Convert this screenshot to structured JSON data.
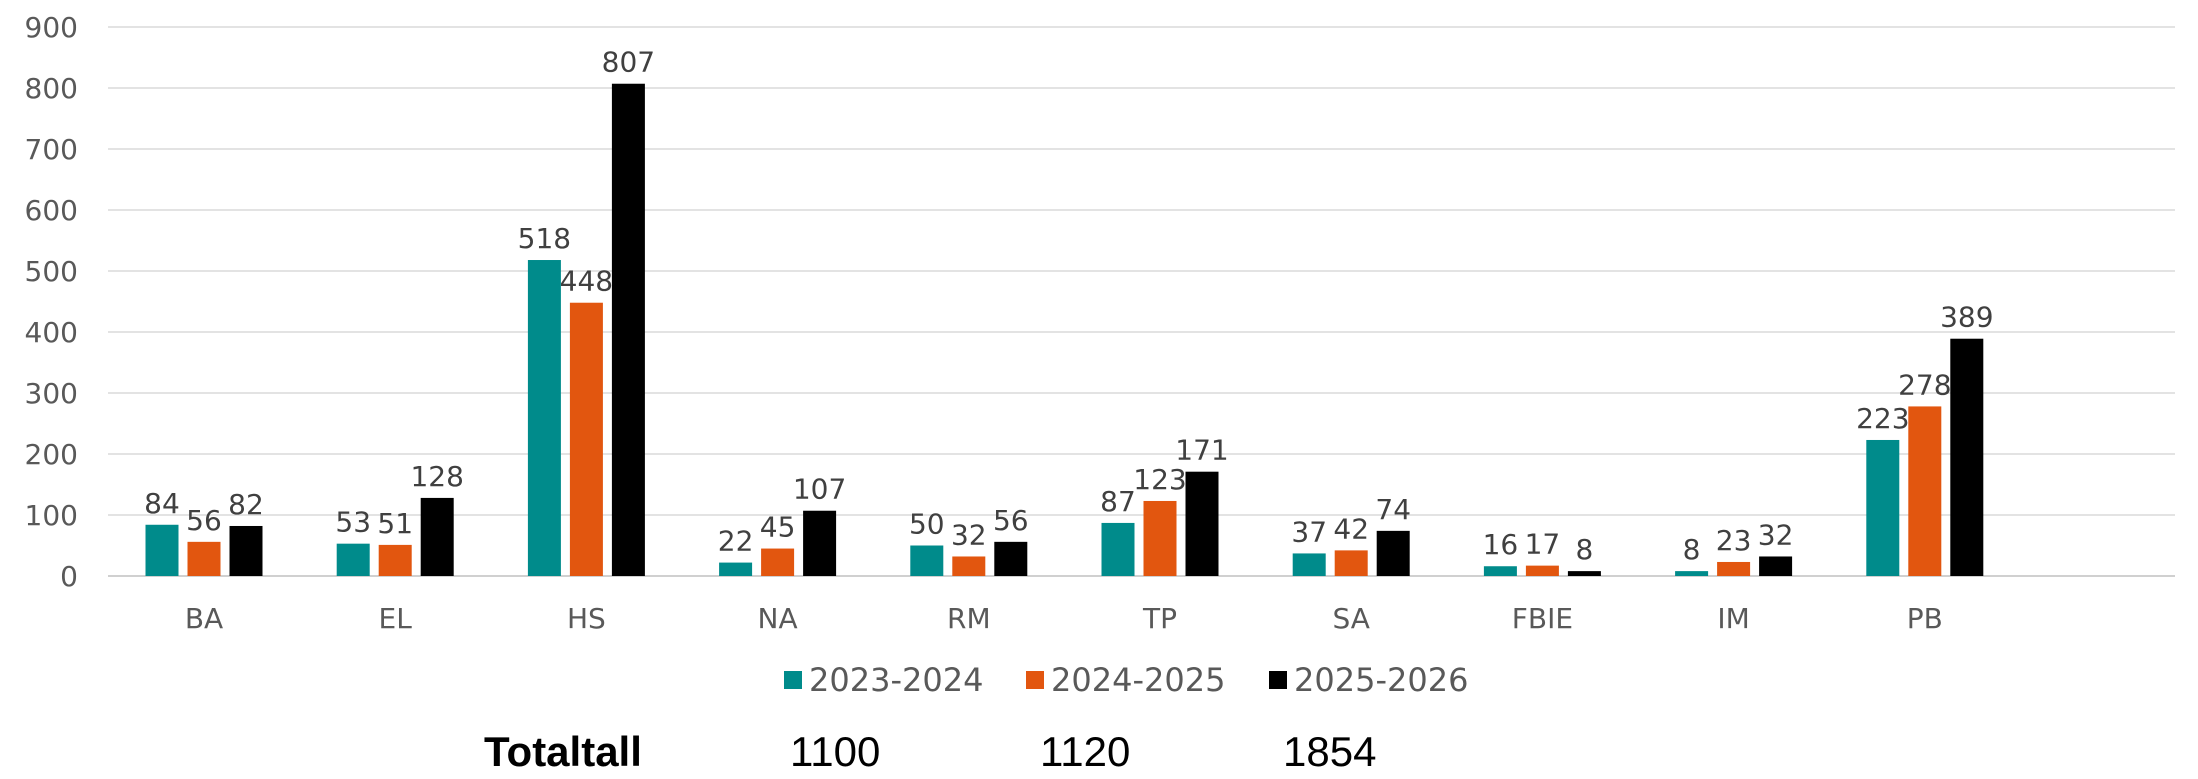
{
  "chart_data": {
    "type": "bar",
    "categories": [
      "BA",
      "EL",
      "HS",
      "NA",
      "RM",
      "TP",
      "SA",
      "FBIE",
      "IM",
      "PB"
    ],
    "series": [
      {
        "name": "2023-2024",
        "color": "#008B8B",
        "values": [
          84,
          53,
          518,
          22,
          50,
          87,
          37,
          16,
          8,
          223
        ]
      },
      {
        "name": "2024-2025",
        "color": "#E2560F",
        "values": [
          56,
          51,
          448,
          45,
          32,
          123,
          42,
          17,
          23,
          278
        ]
      },
      {
        "name": "2025-2026",
        "color": "#000000",
        "values": [
          82,
          128,
          807,
          107,
          56,
          171,
          74,
          8,
          32,
          389
        ]
      }
    ],
    "ylim": [
      0,
      900
    ],
    "yticks": [
      0,
      100,
      200,
      300,
      400,
      500,
      600,
      700,
      800,
      900
    ],
    "grid": true,
    "legend_position": "bottom-center",
    "xlabel": "",
    "ylabel": ""
  },
  "totals": {
    "label": "Totaltall",
    "values": [
      "1100",
      "1120",
      "1854"
    ]
  }
}
